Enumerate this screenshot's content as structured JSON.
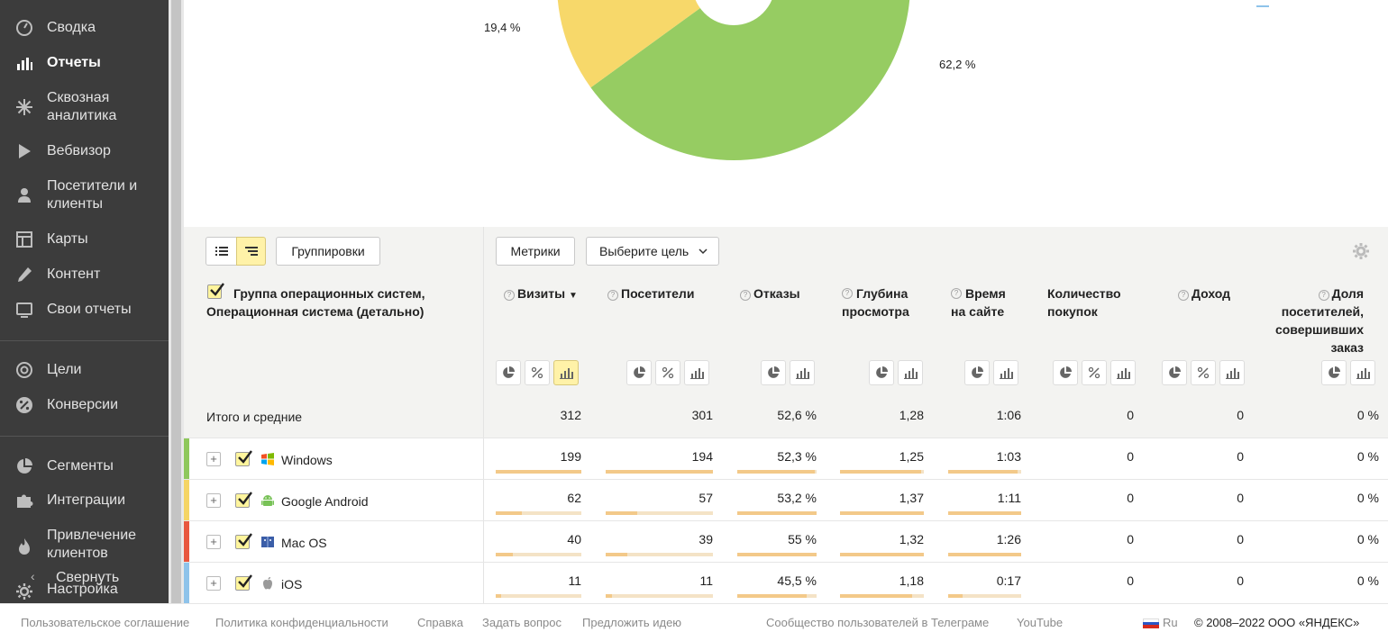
{
  "sidebar": {
    "items": [
      {
        "label": "Сводка",
        "icon": "gauge-icon"
      },
      {
        "label": "Отчеты",
        "icon": "bar-chart-icon",
        "active": true
      },
      {
        "label": "Сквозная аналитика",
        "icon": "snowflake-icon"
      },
      {
        "label": "Вебвизор",
        "icon": "play-icon"
      },
      {
        "label": "Посетители и клиенты",
        "icon": "person-icon"
      },
      {
        "label": "Карты",
        "icon": "map-layout-icon"
      },
      {
        "label": "Контент",
        "icon": "pencil-icon"
      },
      {
        "label": "Свои отчеты",
        "icon": "monitor-icon"
      },
      {
        "label": "Цели",
        "icon": "target-icon"
      },
      {
        "label": "Конверсии",
        "icon": "percent-icon"
      },
      {
        "label": "Сегменты",
        "icon": "pie-icon"
      },
      {
        "label": "Интеграции",
        "icon": "puzzle-icon"
      },
      {
        "label": "Привлечение клиентов",
        "icon": "flame-icon"
      },
      {
        "label": "Настройка",
        "icon": "gear-icon"
      }
    ],
    "collapse_label": "Свернуть"
  },
  "pie": {
    "labels": [
      "19,4 %",
      "62,2 %"
    ],
    "colors": {
      "green": "#96cc62",
      "yellow": "#f7d86a"
    }
  },
  "toolbar": {
    "groupings_label": "Группировки",
    "metrics_label": "Метрики",
    "goal_label": "Выберите цель"
  },
  "table": {
    "dimension_header": "Группа операционных систем, Операционная система (детально)",
    "columns": [
      "Визиты",
      "Посетители",
      "Отказы",
      "Глубина просмотра",
      "Время на сайте",
      "Количество покупок",
      "Доход",
      "Доля посетителей, совершивших заказ"
    ],
    "total": {
      "label": "Итого и средние",
      "values": [
        "312",
        "301",
        "52,6 %",
        "1,28",
        "1:06",
        "0",
        "0",
        "0 %"
      ]
    },
    "rows": [
      {
        "name": "Windows",
        "color": "#8fc85c",
        "icon": "windows-icon",
        "values": [
          "199",
          "194",
          "52,3 %",
          "1,25",
          "1:03",
          "0",
          "0",
          "0 %"
        ],
        "bars": [
          1.0,
          1.0,
          0.98,
          0.97,
          0.95
        ]
      },
      {
        "name": "Google Android",
        "color": "#f5d565",
        "icon": "android-icon",
        "values": [
          "62",
          "57",
          "53,2 %",
          "1,37",
          "1:11",
          "0",
          "0",
          "0 %"
        ],
        "bars": [
          0.31,
          0.29,
          1.0,
          1.0,
          1.0
        ]
      },
      {
        "name": "Mac OS",
        "color": "#e8573f",
        "icon": "macos-icon",
        "values": [
          "40",
          "39",
          "55 %",
          "1,32",
          "1:26",
          "0",
          "0",
          "0 %"
        ],
        "bars": [
          0.2,
          0.2,
          1.0,
          1.0,
          1.0
        ]
      },
      {
        "name": "iOS",
        "color": "#8ec3ea",
        "icon": "apple-icon",
        "values": [
          "11",
          "11",
          "45,5 %",
          "1,18",
          "0:17",
          "0",
          "0",
          "0 %"
        ],
        "bars": [
          0.06,
          0.06,
          0.87,
          0.86,
          0.2
        ]
      }
    ]
  },
  "footer": {
    "links": [
      "Пользовательское соглашение",
      "Политика конфиденциальности",
      "Справка",
      "Задать вопрос",
      "Предложить идею",
      "Сообщество пользователей в Телеграме",
      "YouTube"
    ],
    "lang": "Ru",
    "copyright": "© 2008–2022 ООО «ЯНДЕКС»"
  }
}
